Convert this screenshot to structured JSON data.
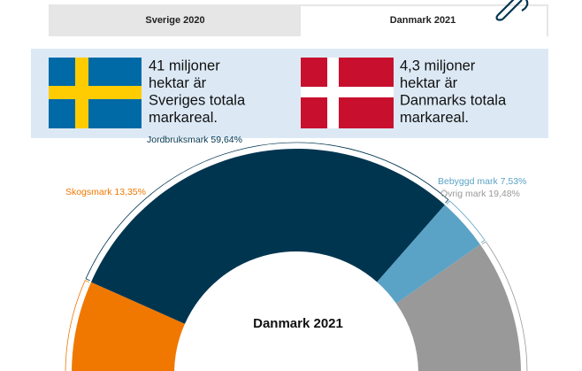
{
  "tabs": [
    "Sverige 2020",
    "Danmark 2021"
  ],
  "info": [
    {
      "lines": [
        "41 miljoner",
        "hektar är",
        "Sveriges totala",
        "markareal."
      ]
    },
    {
      "lines": [
        "4,3 miljoner",
        "hektar är",
        "Danmarks totala",
        "markareal."
      ]
    }
  ],
  "chart_data": {
    "type": "pie",
    "title": "Danmark 2021",
    "categories": [
      "Skogsmark",
      "Jordbruksmark",
      "Bebyggd mark",
      "Övrig mark"
    ],
    "values": [
      13.35,
      59.64,
      7.53,
      19.48
    ],
    "value_labels": [
      "13,35%",
      "59,64%",
      "7,53%",
      "19,48%"
    ],
    "colors": [
      "#f07800",
      "#003550",
      "#5ba3c6",
      "#999999"
    ]
  }
}
